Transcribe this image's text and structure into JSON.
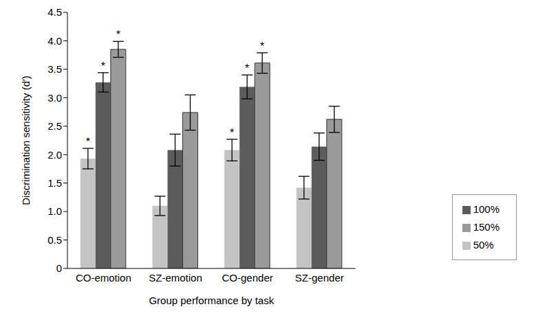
{
  "chart_data": {
    "type": "bar",
    "x_label": "Group performance by task",
    "y_label": "Discrimination sensitivity (d′)",
    "categories": [
      "CO-emotion",
      "SZ-emotion",
      "CO-gender",
      "SZ-gender"
    ],
    "series": [
      {
        "name": "50%",
        "color": "#c4c4c4",
        "values": [
          1.93,
          1.1,
          2.08,
          1.42
        ],
        "errors": [
          0.18,
          0.17,
          0.19,
          0.2
        ],
        "annotations": [
          "*",
          null,
          "*",
          null
        ]
      },
      {
        "name": "100%",
        "color": "#5c5c5c",
        "values": [
          3.27,
          2.08,
          3.19,
          2.14
        ],
        "errors": [
          0.17,
          0.28,
          0.21,
          0.24
        ],
        "annotations": [
          "*",
          null,
          "*",
          null
        ]
      },
      {
        "name": "150%",
        "color": "#9a9a9a",
        "values": [
          3.85,
          2.74,
          3.61,
          2.62
        ],
        "errors": [
          0.14,
          0.31,
          0.18,
          0.23
        ],
        "annotations": [
          "*",
          null,
          "*",
          null
        ]
      }
    ],
    "ylim": [
      0,
      4.5
    ],
    "yticks": [
      0,
      0.5,
      {
        "value": 1,
        "label": "1.0"
      },
      1.5,
      {
        "value": 2,
        "label": "2.0"
      },
      2.5,
      {
        "value": 3,
        "label": "3.0"
      },
      3.5,
      {
        "value": 4,
        "label": "4.0"
      },
      4.5
    ],
    "grid": false,
    "legend": "right"
  }
}
